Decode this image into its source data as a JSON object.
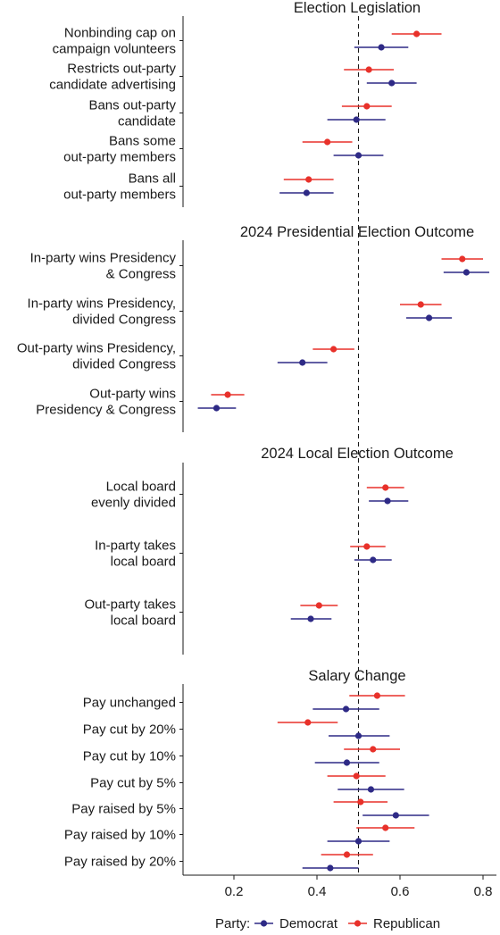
{
  "chart_data": {
    "type": "scatter",
    "orientation": "horizontal-dot-and-whisker",
    "xlim": [
      0.07,
      0.84
    ],
    "x_ticks": [
      "0.2",
      "0.4",
      "0.6",
      "0.8"
    ],
    "x_tick_values": [
      0.2,
      0.4,
      0.6,
      0.8
    ],
    "reference_line": 0.5,
    "grid": false,
    "legend": {
      "title": "Party:",
      "position": "bottom",
      "entries": [
        {
          "name": "Democrat",
          "color": "#2e2a86"
        },
        {
          "name": "Republican",
          "color": "#e8312a"
        }
      ]
    },
    "panels": [
      {
        "title": "Election Legislation",
        "categories": [
          {
            "label": [
              "Nonbinding cap on",
              "campaign volunteers"
            ],
            "republican": {
              "est": 0.64,
              "lo": 0.58,
              "hi": 0.7
            },
            "democrat": {
              "est": 0.555,
              "lo": 0.49,
              "hi": 0.62
            }
          },
          {
            "label": [
              "Restricts out-party",
              "candidate advertising"
            ],
            "republican": {
              "est": 0.525,
              "lo": 0.465,
              "hi": 0.585
            },
            "democrat": {
              "est": 0.58,
              "lo": 0.52,
              "hi": 0.64
            }
          },
          {
            "label": [
              "Bans out-party",
              "candidate"
            ],
            "republican": {
              "est": 0.52,
              "lo": 0.46,
              "hi": 0.58
            },
            "democrat": {
              "est": 0.495,
              "lo": 0.425,
              "hi": 0.565
            }
          },
          {
            "label": [
              "Bans some",
              "out-party members"
            ],
            "republican": {
              "est": 0.425,
              "lo": 0.365,
              "hi": 0.485
            },
            "democrat": {
              "est": 0.5,
              "lo": 0.44,
              "hi": 0.56
            }
          },
          {
            "label": [
              "Bans all",
              "out-party members"
            ],
            "republican": {
              "est": 0.38,
              "lo": 0.32,
              "hi": 0.44
            },
            "democrat": {
              "est": 0.375,
              "lo": 0.31,
              "hi": 0.44
            }
          }
        ]
      },
      {
        "title": "2024 Presidential Election Outcome",
        "categories": [
          {
            "label": [
              "In-party wins Presidency",
              "& Congress"
            ],
            "republican": {
              "est": 0.75,
              "lo": 0.7,
              "hi": 0.8
            },
            "democrat": {
              "est": 0.76,
              "lo": 0.705,
              "hi": 0.815
            }
          },
          {
            "label": [
              "In-party wins Presidency,",
              "divided Congress"
            ],
            "republican": {
              "est": 0.65,
              "lo": 0.6,
              "hi": 0.7
            },
            "democrat": {
              "est": 0.67,
              "lo": 0.615,
              "hi": 0.725
            }
          },
          {
            "label": [
              "Out-party wins Presidency,",
              "divided Congress"
            ],
            "republican": {
              "est": 0.44,
              "lo": 0.39,
              "hi": 0.49
            },
            "democrat": {
              "est": 0.365,
              "lo": 0.305,
              "hi": 0.425
            }
          },
          {
            "label": [
              "Out-party wins",
              "Presidency & Congress"
            ],
            "republican": {
              "est": 0.185,
              "lo": 0.145,
              "hi": 0.225
            },
            "democrat": {
              "est": 0.158,
              "lo": 0.113,
              "hi": 0.205
            }
          }
        ]
      },
      {
        "title": "2024 Local Election Outcome",
        "categories": [
          {
            "label": [
              "Local board",
              "evenly divided"
            ],
            "republican": {
              "est": 0.565,
              "lo": 0.52,
              "hi": 0.61
            },
            "democrat": {
              "est": 0.57,
              "lo": 0.525,
              "hi": 0.62
            }
          },
          {
            "label": [
              "In-party takes",
              "local board"
            ],
            "republican": {
              "est": 0.52,
              "lo": 0.48,
              "hi": 0.565
            },
            "democrat": {
              "est": 0.535,
              "lo": 0.49,
              "hi": 0.58
            }
          },
          {
            "label": [
              "Out-party takes",
              "local board"
            ],
            "republican": {
              "est": 0.405,
              "lo": 0.36,
              "hi": 0.45
            },
            "democrat": {
              "est": 0.385,
              "lo": 0.337,
              "hi": 0.435
            }
          }
        ]
      },
      {
        "title": "Salary Change",
        "categories": [
          {
            "label": [
              "Pay unchanged"
            ],
            "republican": {
              "est": 0.545,
              "lo": 0.478,
              "hi": 0.612
            },
            "democrat": {
              "est": 0.47,
              "lo": 0.39,
              "hi": 0.55
            }
          },
          {
            "label": [
              "Pay cut by 20%"
            ],
            "republican": {
              "est": 0.378,
              "lo": 0.305,
              "hi": 0.45
            },
            "democrat": {
              "est": 0.5,
              "lo": 0.428,
              "hi": 0.575
            }
          },
          {
            "label": [
              "Pay cut by 10%"
            ],
            "republican": {
              "est": 0.535,
              "lo": 0.465,
              "hi": 0.6
            },
            "democrat": {
              "est": 0.472,
              "lo": 0.395,
              "hi": 0.55
            }
          },
          {
            "label": [
              "Pay cut by 5%"
            ],
            "republican": {
              "est": 0.495,
              "lo": 0.425,
              "hi": 0.565
            },
            "democrat": {
              "est": 0.53,
              "lo": 0.45,
              "hi": 0.61
            }
          },
          {
            "label": [
              "Pay raised by 5%"
            ],
            "republican": {
              "est": 0.505,
              "lo": 0.44,
              "hi": 0.57
            },
            "democrat": {
              "est": 0.59,
              "lo": 0.51,
              "hi": 0.67
            }
          },
          {
            "label": [
              "Pay raised by 10%"
            ],
            "republican": {
              "est": 0.565,
              "lo": 0.495,
              "hi": 0.635
            },
            "democrat": {
              "est": 0.5,
              "lo": 0.425,
              "hi": 0.575
            }
          },
          {
            "label": [
              "Pay raised by 20%"
            ],
            "republican": {
              "est": 0.472,
              "lo": 0.41,
              "hi": 0.535
            },
            "democrat": {
              "est": 0.432,
              "lo": 0.365,
              "hi": 0.5
            }
          }
        ]
      }
    ]
  }
}
